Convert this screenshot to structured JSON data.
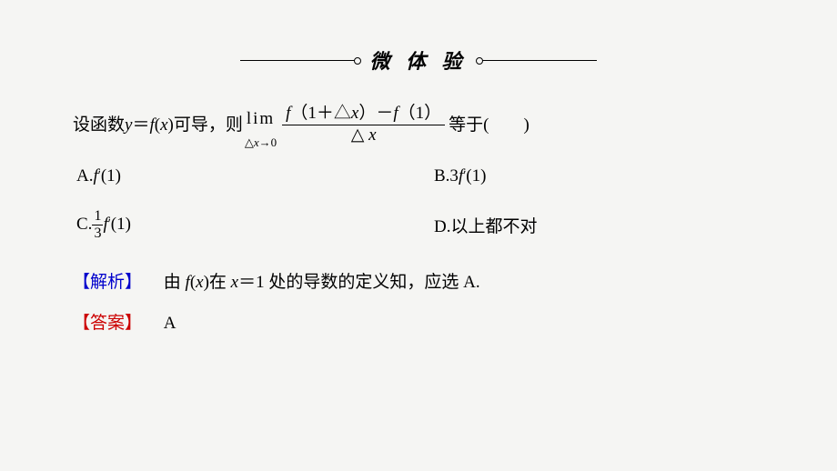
{
  "header": {
    "title": "微 体 验"
  },
  "question": {
    "pre": "设函数 ",
    "fn1a": "y",
    "fn1eq": "＝",
    "fn1b": "f",
    "fn1c": "(",
    "fn1d": "x",
    "fn1e": ")可导，则",
    "lim_top": "lim",
    "lim_bot_a": "△",
    "lim_bot_b": "x",
    "lim_bot_c": "→0",
    "num_a": "f",
    "num_b": "（1＋△",
    "num_c": "x",
    "num_d": "）－",
    "num_e": "f",
    "num_f": "（1）",
    "den_a": "△",
    "den_b": " x",
    "post": "等于(　　)"
  },
  "options": {
    "A_pre": "A.",
    "A_f": "f",
    "A_prime": "′",
    "A_tail": "(1)",
    "B_pre": "B.3",
    "B_f": "f",
    "B_prime": "′",
    "B_tail": "(1)",
    "C_pre": "C.",
    "C_num": "1",
    "C_den": "3",
    "C_f": "f",
    "C_prime": "′",
    "C_tail": "(1)",
    "D_pre": "D.以上都不对"
  },
  "analysis": {
    "label": "【解析】",
    "t1": "　由 ",
    "t2": "f",
    "t3": "(",
    "t4": "x",
    "t5": ")在 ",
    "t6": "x",
    "t7": "＝1 处的导数的定义知，应选 A."
  },
  "answer": {
    "label": "【答案】",
    "text": "　A"
  }
}
